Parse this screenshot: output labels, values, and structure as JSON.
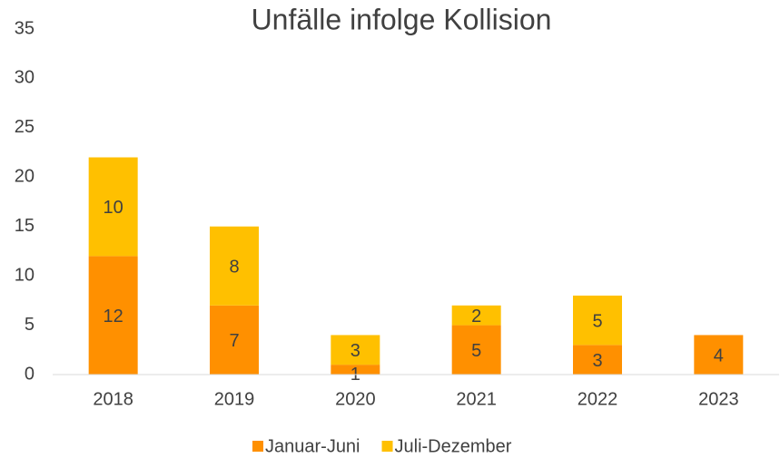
{
  "chart_data": {
    "type": "stacked_bar",
    "title": "Unfälle infolge Kollision",
    "categories": [
      "2018",
      "2019",
      "2020",
      "2021",
      "2022",
      "2023"
    ],
    "series": [
      {
        "name": "Januar-Juni",
        "color": "#ff9000",
        "values": [
          12,
          7,
          1,
          5,
          3,
          4
        ]
      },
      {
        "name": "Juli-Dezember",
        "color": "#ffc000",
        "values": [
          10,
          8,
          3,
          2,
          5,
          null
        ]
      }
    ],
    "ylim": [
      0,
      35
    ],
    "yticks": [
      0,
      5,
      10,
      15,
      20,
      25,
      30,
      35
    ],
    "grid": false,
    "legend": "bottom"
  }
}
